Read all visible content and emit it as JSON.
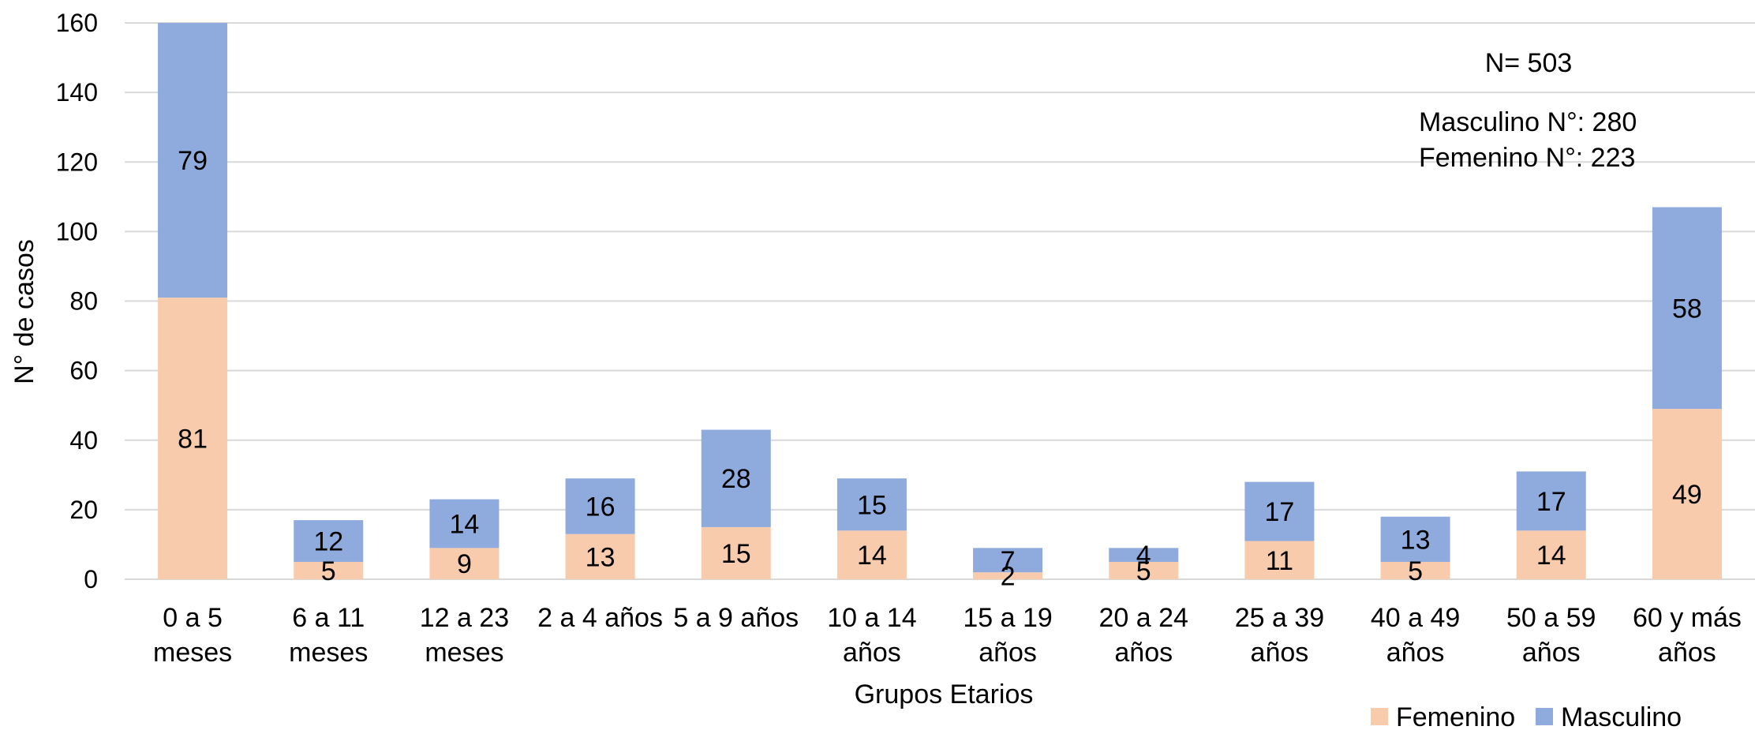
{
  "chart_data": {
    "type": "bar",
    "stacked": true,
    "categories": [
      [
        "0 a 5",
        "meses"
      ],
      [
        "6 a 11",
        "meses"
      ],
      [
        "12 a 23",
        "meses"
      ],
      [
        "2 a 4 años"
      ],
      [
        "5 a 9 años"
      ],
      [
        "10 a 14",
        "años"
      ],
      [
        "15 a 19",
        "años"
      ],
      [
        "20 a 24",
        "años"
      ],
      [
        "25 a 39",
        "años"
      ],
      [
        "40 a 49",
        "años"
      ],
      [
        "50 a 59",
        "años"
      ],
      [
        "60 y más",
        "años"
      ]
    ],
    "series": [
      {
        "name": "Femenino",
        "color": "#f8cbad",
        "values": [
          81,
          5,
          9,
          13,
          15,
          14,
          2,
          5,
          11,
          5,
          14,
          49
        ]
      },
      {
        "name": "Masculino",
        "color": "#8faadc",
        "values": [
          79,
          12,
          14,
          16,
          28,
          15,
          7,
          4,
          17,
          13,
          17,
          58
        ]
      }
    ],
    "title": "",
    "xlabel": "Grupos Etarios",
    "ylabel": "N° de casos",
    "ylim": [
      0,
      160
    ],
    "yticks": [
      0,
      20,
      40,
      60,
      80,
      100,
      120,
      140,
      160
    ],
    "grid": true,
    "legend_position": "bottom-right",
    "annotations": [
      "N= 503",
      "Masculino N°: 280",
      "Femenino N°: 223"
    ]
  }
}
